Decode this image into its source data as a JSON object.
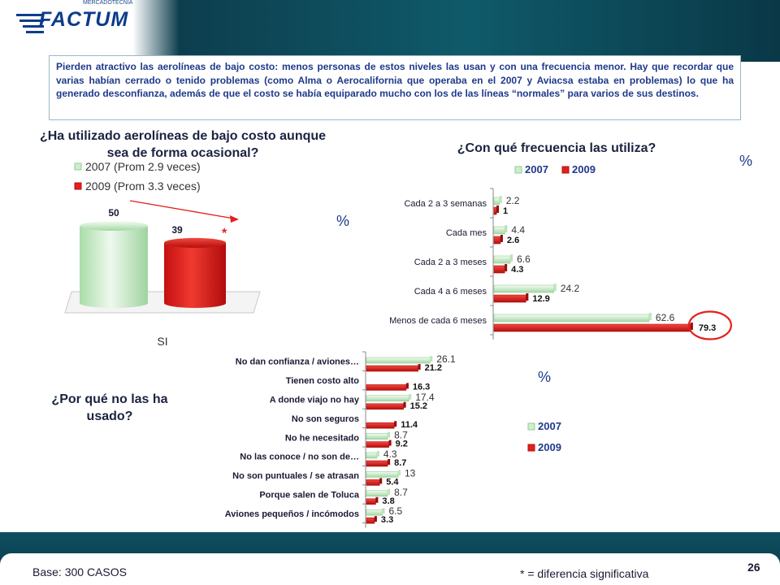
{
  "brand": {
    "logo_text": "FACTUM",
    "logo_tagline": "MERCADOTECNIA"
  },
  "intro_text": "Pierden atractivo las aerolíneas de bajo costo: menos personas de estos niveles las usan y con una frecuencia menor. Hay que recordar que varias habían cerrado o tenido problemas (como Alma o Aerocalifornia que operaba en el 2007 y Aviacsa estaba en problemas) lo que ha generado desconfianza, además de que el costo se había equiparado mucho con los de las líneas “normales” para varios de sus destinos.",
  "colors": {
    "series_2007": "#cfeccf",
    "series_2007_dark": "#8fcf8f",
    "series_2009": "#e3201c",
    "series_2009_dark": "#b01010",
    "accent_blue": "#1f3a8a",
    "header_teal": "#0f5a6a"
  },
  "footer": {
    "base": "Base: 300 CASOS",
    "significance_note": "* = diferencia significativa",
    "page_number": "26"
  },
  "chart_data": [
    {
      "type": "bar",
      "title": "¿Ha utilizado aerolíneas de bajo costo aunque sea de forma ocasional?",
      "unit_label": "%",
      "categories": [
        "SI"
      ],
      "series": [
        {
          "name": "2007 (Prom 2.9 veces)",
          "values": [
            50
          ]
        },
        {
          "name": "2009 (Prom 3.3 veces)",
          "values": [
            39
          ]
        }
      ],
      "significance_marker": "*",
      "legend": "top"
    },
    {
      "type": "bar",
      "orientation": "horizontal",
      "title": "¿Con qué frecuencia las utiliza?",
      "unit_label": "%",
      "categories": [
        "Cada 2 a 3 semanas",
        "Cada mes",
        "Cada 2 a 3 meses",
        "Cada 4 a 6 meses",
        "Menos de cada 6 meses"
      ],
      "series": [
        {
          "name": "2007",
          "values": [
            2.2,
            4.4,
            6.6,
            24.2,
            62.6
          ]
        },
        {
          "name": "2009",
          "values": [
            1,
            2.6,
            4.3,
            12.9,
            79.3
          ]
        }
      ],
      "value_labels": {
        "2007": [
          "2.2",
          "4.4",
          "6.6",
          "24.2",
          "62.6"
        ],
        "2009": [
          "1",
          "2.6",
          "4.3",
          "12.9",
          "79.3"
        ]
      },
      "highlighted_value": "79.3",
      "legend": "top"
    },
    {
      "type": "bar",
      "orientation": "horizontal",
      "title": "¿Por qué no las ha usado?",
      "unit_label": "%",
      "categories": [
        "No dan confianza / aviones…",
        "Tienen costo alto",
        "A donde viajo no hay",
        "No son seguros",
        "No he necesitado",
        "No las conoce / no son de…",
        "No son puntuales / se atrasan",
        "Porque salen de Toluca",
        "Aviones pequeños / incómodos"
      ],
      "series": [
        {
          "name": "2007",
          "values": [
            26.1,
            null,
            17.4,
            null,
            8.7,
            4.3,
            13,
            8.7,
            6.5
          ]
        },
        {
          "name": "2009",
          "values": [
            21.2,
            16.3,
            15.2,
            11.4,
            9.2,
            8.7,
            5.4,
            3.8,
            3.3
          ]
        }
      ],
      "value_labels": {
        "2007": [
          "26.1",
          "",
          "17.4",
          "",
          "8.7",
          "4.3",
          "13",
          "8.7",
          "6.5"
        ],
        "2009": [
          "21.2",
          "16.3",
          "15.2",
          "11.4",
          "9.2",
          "8.7",
          "5.4",
          "3.8",
          "3.3"
        ]
      },
      "legend": "right"
    }
  ]
}
